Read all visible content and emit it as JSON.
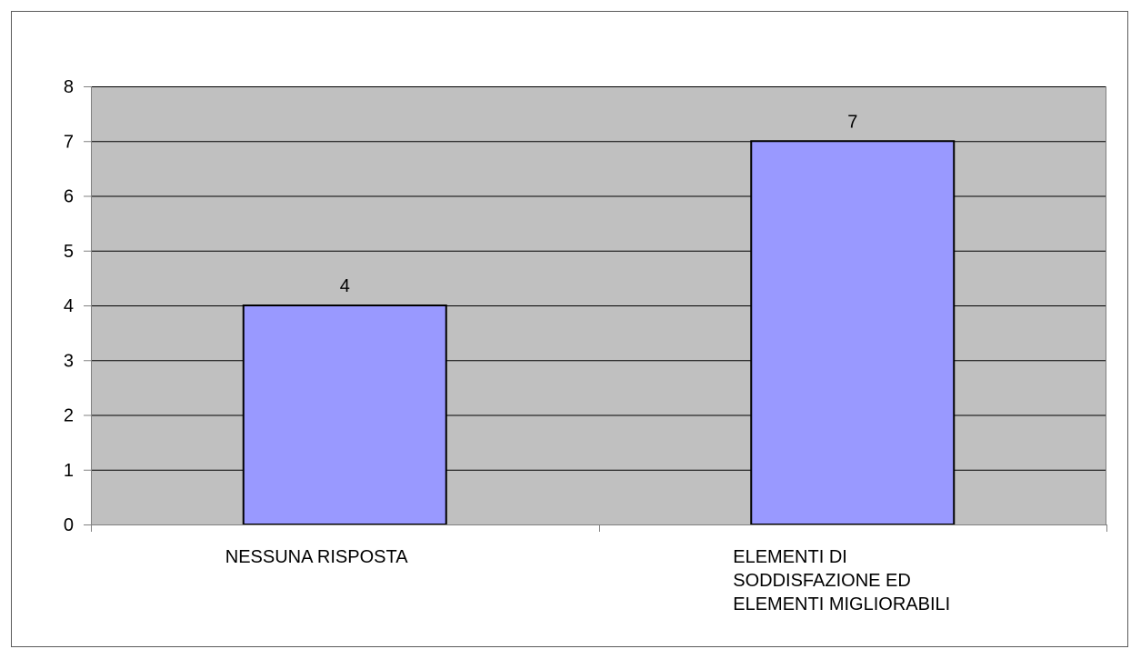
{
  "chart_data": {
    "type": "bar",
    "title": "",
    "xlabel": "",
    "ylabel": "",
    "categories": [
      [
        "NESSUNA RISPOSTA"
      ],
      [
        "ELEMENTI DI",
        "SODDISFAZIONE ED",
        "ELEMENTI MIGLIORABILI"
      ]
    ],
    "values": [
      4,
      7
    ],
    "data_labels": [
      "4",
      "7"
    ],
    "ylim": [
      0,
      8
    ],
    "yticks": [
      "0",
      "1",
      "2",
      "3",
      "4",
      "5",
      "6",
      "7",
      "8"
    ],
    "grid": true,
    "legend": "none",
    "colors": {
      "plot_background": "#c0c0c0",
      "bar_fill": "#9999ff",
      "bar_stroke": "#000000",
      "grid_line": "#000000",
      "axis_line": "#808080"
    }
  }
}
